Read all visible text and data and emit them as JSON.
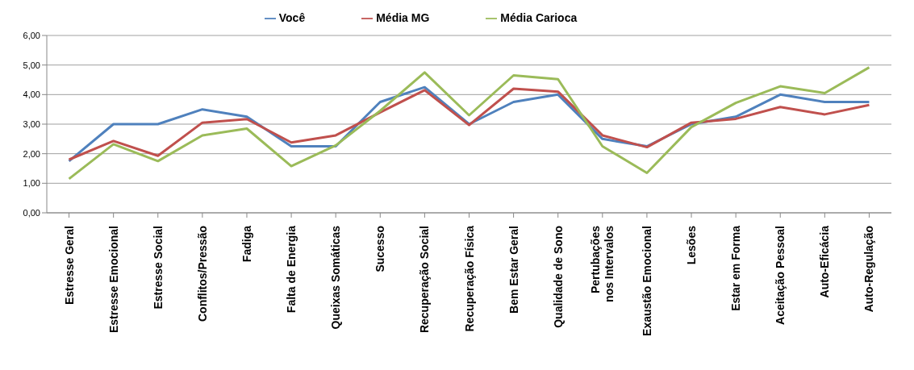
{
  "chart_data": {
    "type": "line",
    "categories": [
      "Estresse Geral",
      "Estresse Emocional",
      "Estresse Social",
      "Conflitos/Pressão",
      "Fadiga",
      "Falta de Energia",
      "Queixas Somáticas",
      "Sucesso",
      "Recuperação Social",
      "Recuperação Física",
      "Bem Estar Geral",
      "Qualidade de Sono",
      "Pertubações nos Intervalos",
      "Exaustão Emocional",
      "Lesões",
      "Estar em Forma",
      "Aceitação Pessoal",
      "Auto-Eficácia",
      "Auto-Regulação"
    ],
    "series": [
      {
        "name": "Você",
        "color": "#4f81bd",
        "values": [
          1.75,
          3.0,
          3.0,
          3.5,
          3.25,
          2.25,
          2.25,
          3.75,
          4.25,
          3.0,
          3.75,
          4.0,
          2.5,
          2.25,
          3.0,
          3.25,
          4.0,
          3.75,
          3.75
        ]
      },
      {
        "name": "Média MG",
        "color": "#c0504d",
        "values": [
          1.8,
          2.43,
          1.93,
          3.05,
          3.17,
          2.38,
          2.62,
          3.4,
          4.15,
          2.97,
          4.2,
          4.1,
          2.62,
          2.22,
          3.05,
          3.18,
          3.58,
          3.33,
          3.65
        ]
      },
      {
        "name": "Média Carioca",
        "color": "#9bbb59",
        "values": [
          1.15,
          2.32,
          1.75,
          2.62,
          2.85,
          1.58,
          2.28,
          3.45,
          4.75,
          3.3,
          4.65,
          4.52,
          2.25,
          1.35,
          2.9,
          3.72,
          4.28,
          4.05,
          4.92
        ]
      }
    ],
    "ylim": [
      0,
      6
    ],
    "yticks": [
      {
        "value": 0,
        "label": "0,00"
      },
      {
        "value": 1,
        "label": "1,00"
      },
      {
        "value": 2,
        "label": "2,00"
      },
      {
        "value": 3,
        "label": "3,00"
      },
      {
        "value": 4,
        "label": "4,00"
      },
      {
        "value": 5,
        "label": "5,00"
      },
      {
        "value": 6,
        "label": "6,00"
      }
    ],
    "grid": "y",
    "legend": "top",
    "marker": "none",
    "line_style": "solid"
  }
}
